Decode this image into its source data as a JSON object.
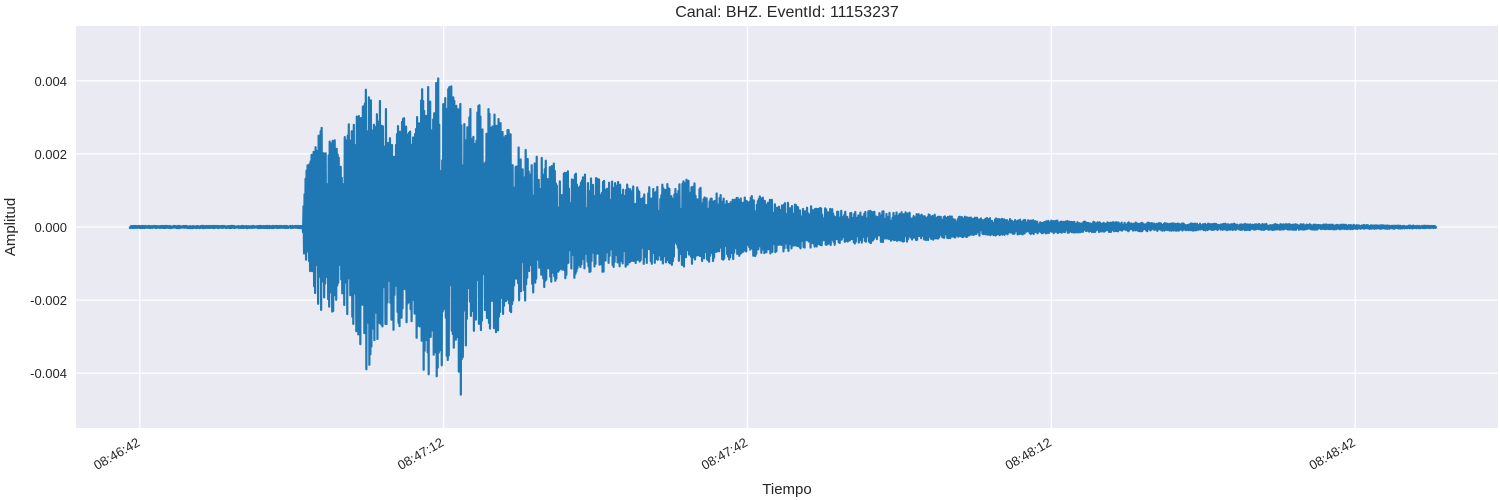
{
  "chart_data": {
    "type": "line",
    "title": "Canal: BHZ. EventId: 11153237",
    "xlabel": "Tiempo",
    "ylabel": "Amplitud",
    "x_ticks": [
      "08:46:42",
      "08:47:12",
      "08:47:42",
      "08:48:12",
      "08:48:42"
    ],
    "x_tick_seconds": [
      42,
      72,
      102,
      132,
      162
    ],
    "xlim_seconds": [
      35.7,
      176.1
    ],
    "y_ticks": [
      0.004,
      0.002,
      0.0,
      -0.002,
      -0.004
    ],
    "y_tick_labels": [
      "0.004",
      "0.002",
      "0.000",
      "-0.002",
      "-0.004"
    ],
    "ylim": [
      -0.0055,
      0.0055
    ],
    "grid": true,
    "colors": {
      "line": "#1f77b4",
      "background": "#eaeaf2",
      "grid": "#ffffff"
    },
    "series": [
      {
        "x_seconds": [
          41.0,
          58.1,
          58.2,
          60.0,
          62.0,
          64.2,
          64.5,
          64.8,
          66.0,
          68.0,
          69.0,
          70.3,
          73.2,
          73.6,
          74.0,
          75.0,
          76.2,
          77.3,
          79.0,
          81.0,
          85.0,
          92.0,
          96.0,
          100.0,
          103.0,
          105.0,
          110.0,
          118.0,
          125.0,
          135.0,
          145.0,
          155.0,
          165.0,
          170.0
        ],
        "envelope_max": [
          3e-05,
          3e-05,
          0.0015,
          0.0028,
          0.0025,
          0.0036,
          0.005,
          0.0037,
          0.0035,
          0.003,
          0.0028,
          0.0043,
          0.0038,
          0.0035,
          0.0033,
          0.0032,
          0.0039,
          0.0031,
          0.0025,
          0.002,
          0.0015,
          0.0011,
          0.0013,
          0.0008,
          0.0009,
          0.0007,
          0.0005,
          0.0004,
          0.00025,
          0.00015,
          0.0001,
          8e-05,
          5e-05,
          3e-05
        ],
        "envelope_min": [
          -3e-05,
          -3e-05,
          -0.0009,
          -0.0025,
          -0.0022,
          -0.0035,
          -0.0048,
          -0.0036,
          -0.0033,
          -0.0028,
          -0.0026,
          -0.0044,
          -0.0038,
          -0.005,
          -0.0033,
          -0.0031,
          -0.003,
          -0.0029,
          -0.0023,
          -0.0018,
          -0.0014,
          -0.001,
          -0.0011,
          -0.0009,
          -0.0008,
          -0.0007,
          -0.0005,
          -0.0004,
          -0.00025,
          -0.00015,
          -0.0001,
          -8e-05,
          -5e-05,
          -3e-05
        ]
      }
    ]
  }
}
